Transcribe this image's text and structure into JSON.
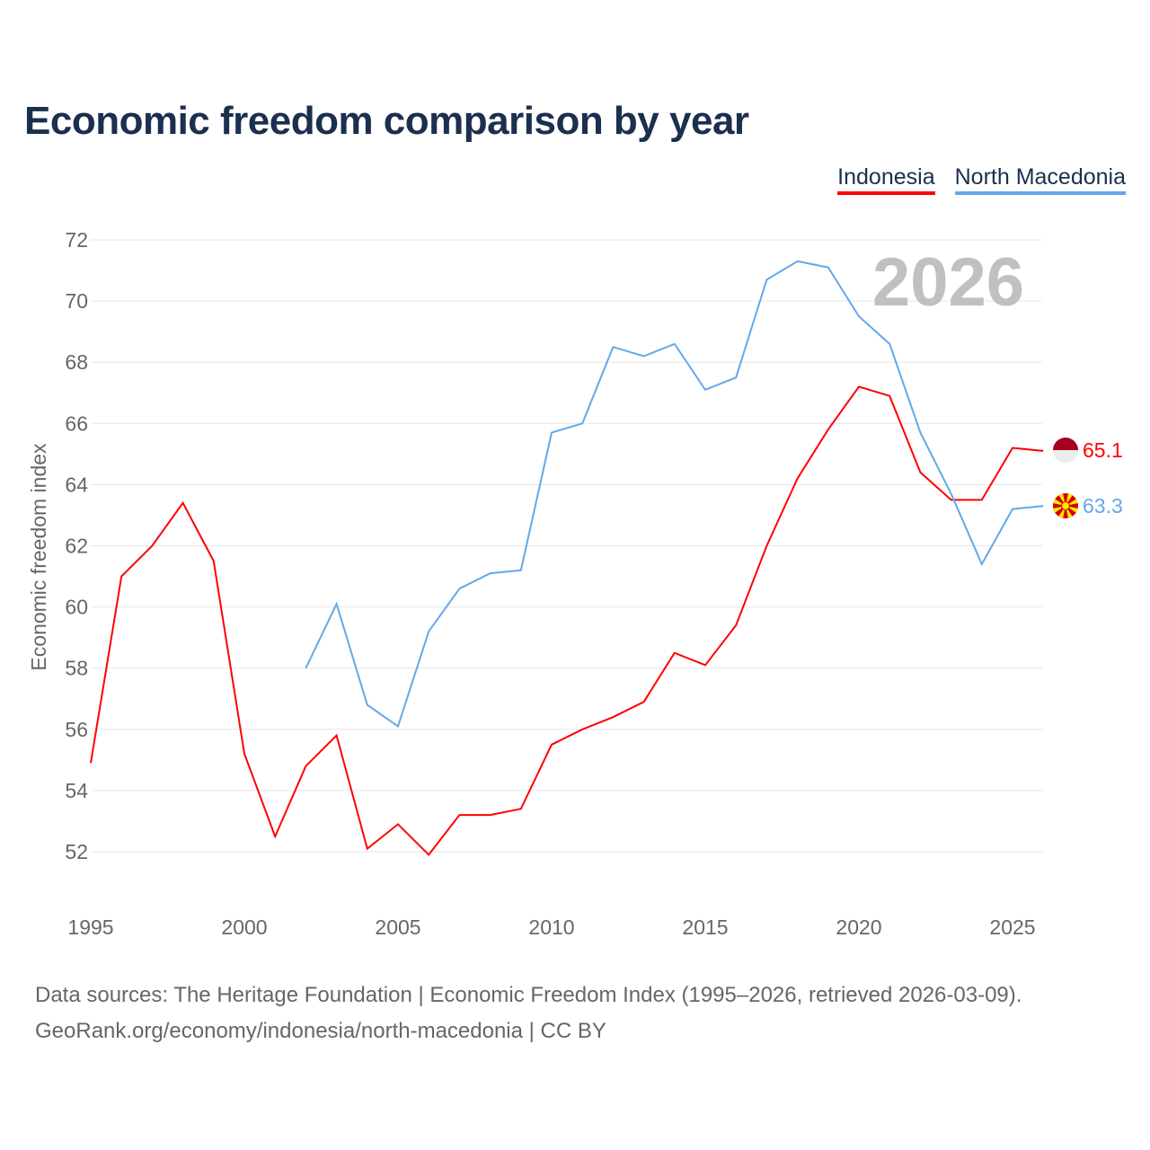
{
  "chart_data": {
    "type": "line",
    "title": "Economic freedom comparison by year",
    "xlabel": "",
    "ylabel": "Economic freedom index",
    "xlim": [
      1995,
      2026
    ],
    "ylim": [
      51,
      72
    ],
    "x_ticks": [
      "1995",
      "2000",
      "2005",
      "2010",
      "2015",
      "2020",
      "2025"
    ],
    "y_ticks": [
      "52",
      "54",
      "56",
      "58",
      "60",
      "62",
      "64",
      "66",
      "68",
      "70",
      "72"
    ],
    "year_label": "2026",
    "legend_position": "top-right",
    "series": [
      {
        "name": "Indonesia",
        "color": "#ff0000",
        "end_label": "65.1",
        "x": [
          1995,
          1996,
          1997,
          1998,
          1999,
          2000,
          2001,
          2002,
          2003,
          2004,
          2005,
          2006,
          2007,
          2008,
          2009,
          2010,
          2011,
          2012,
          2013,
          2014,
          2015,
          2016,
          2017,
          2018,
          2019,
          2020,
          2021,
          2022,
          2023,
          2024,
          2025,
          2026
        ],
        "values": [
          54.9,
          61.0,
          62.0,
          63.4,
          61.5,
          55.2,
          52.5,
          54.8,
          55.8,
          52.1,
          52.9,
          51.9,
          53.2,
          53.2,
          53.4,
          55.5,
          56.0,
          56.4,
          56.9,
          58.5,
          58.1,
          59.4,
          62.0,
          64.2,
          65.8,
          67.2,
          66.9,
          64.4,
          63.5,
          63.5,
          65.2,
          65.1
        ]
      },
      {
        "name": "North Macedonia",
        "color": "#62a8ea",
        "end_label": "63.3",
        "x": [
          2002,
          2003,
          2004,
          2005,
          2006,
          2007,
          2008,
          2009,
          2010,
          2011,
          2012,
          2013,
          2014,
          2015,
          2016,
          2017,
          2018,
          2019,
          2020,
          2021,
          2022,
          2023,
          2024,
          2025,
          2026
        ],
        "values": [
          58.0,
          60.1,
          56.8,
          56.1,
          59.2,
          60.6,
          61.1,
          61.2,
          65.7,
          66.0,
          68.5,
          68.2,
          68.6,
          67.1,
          67.5,
          70.7,
          71.3,
          71.1,
          69.5,
          68.6,
          65.7,
          63.7,
          61.4,
          63.2,
          63.3
        ]
      }
    ]
  },
  "source": {
    "line1": "Data sources: The Heritage Foundation | Economic Freedom Index (1995–2026, retrieved 2026-03-09).",
    "line2": "GeoRank.org/economy/indonesia/north-macedonia | CC BY"
  }
}
